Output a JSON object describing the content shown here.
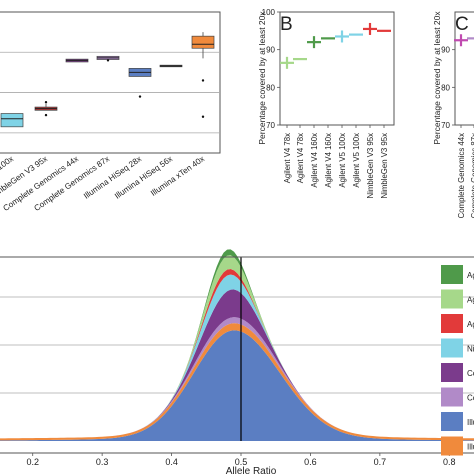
{
  "chart_data": [
    {
      "type": "box",
      "panel": "A",
      "title": "",
      "xlabel": "",
      "ylabel": "",
      "categories": [
        "...100x",
        "NimbleGen V3 95x",
        "Complete Genomics 44x",
        "Complete Genomics 87x",
        "Illumina HiSeq 28x",
        "Illumina HiSeq 56x",
        "Illumina xTen 40x"
      ],
      "boxes": [
        {
          "q1": 71.5,
          "median": 73.5,
          "q3": 74.8,
          "whisker_low": 71.5,
          "whisker_high": 74.8,
          "outliers": [],
          "color": "#7fd3e6"
        },
        {
          "q1": 75.6,
          "median": 76.0,
          "q3": 76.4,
          "whisker_low": 75.6,
          "whisker_high": 77.2,
          "outliers": [
            77.6,
            74.4
          ],
          "color": "#b23a3a"
        },
        {
          "q1": 87.6,
          "median": 88.0,
          "q3": 88.3,
          "whisker_low": 87.6,
          "whisker_high": 88.3,
          "outliers": [],
          "color": "#7b3b8c"
        },
        {
          "q1": 88.2,
          "median": 88.6,
          "q3": 89.0,
          "whisker_low": 88.2,
          "whisker_high": 89.0,
          "outliers": [
            88.0
          ],
          "color": "#b18ac8"
        },
        {
          "q1": 84.0,
          "median": 85.0,
          "q3": 86.0,
          "whisker_low": 84.0,
          "whisker_high": 86.0,
          "outliers": [
            79.0
          ],
          "color": "#5b7ec2"
        },
        {
          "q1": 86.4,
          "median": 86.6,
          "q3": 86.8,
          "whisker_low": 86.4,
          "whisker_high": 86.8,
          "outliers": [],
          "color": "#5b7ec2"
        },
        {
          "q1": 91.0,
          "median": 92.0,
          "q3": 94.0,
          "whisker_low": 88.5,
          "whisker_high": 95.0,
          "outliers": [
            83.0,
            74.0
          ],
          "color": "#f08a3c"
        }
      ],
      "ylim": [
        65,
        100
      ],
      "gridlines": [
        70,
        80,
        90
      ],
      "grid": true
    },
    {
      "type": "scatter",
      "panel": "B",
      "title": "",
      "xlabel": "",
      "ylabel": "Percentage covered by at least 20x",
      "categories": [
        "Agilent V4 78x",
        "Agilent V4 78x",
        "Agilent V4 160x",
        "Agilent V4 160x",
        "Agilent V5 100x",
        "Agilent V5 100x",
        "NimbleGen V3 95x",
        "NimbleGen V3 95x"
      ],
      "values": [
        86.5,
        87.5,
        92.0,
        93.0,
        93.5,
        94.0,
        95.5,
        95.0
      ],
      "colors": [
        "#a6d88a",
        "#a6d88a",
        "#4f9a4a",
        "#4f9a4a",
        "#7fd3e6",
        "#7fd3e6",
        "#e23a3a",
        "#e23a3a"
      ],
      "ylim": [
        70,
        100
      ],
      "yticks": [
        70,
        80,
        90,
        100
      ],
      "grid": false
    },
    {
      "type": "scatter",
      "panel": "C",
      "title": "",
      "xlabel": "",
      "ylabel": "Percentage covered by at least 20x",
      "categories": [
        "Complete Genomics 44x",
        "Complete Genomics 87x"
      ],
      "values": [
        92.5,
        93.0
      ],
      "colors": [
        "#c04ab0",
        "#b18ac8"
      ],
      "ylim": [
        70,
        100
      ],
      "yticks": [
        70,
        80,
        90
      ],
      "grid": false
    },
    {
      "type": "area",
      "panel": "D",
      "title": "",
      "xlabel": "Allele Ratio",
      "ylabel": "",
      "xlim": [
        0.15,
        0.85
      ],
      "xticks": [
        0.2,
        0.3,
        0.4,
        0.5,
        0.6,
        0.7,
        0.8
      ],
      "vline": 0.5,
      "grid": true,
      "stacked": true,
      "series": [
        {
          "name": "Illu...",
          "color": "#5b7ec2"
        },
        {
          "name": "Illu...",
          "color": "#f08a3c"
        },
        {
          "name": "Co...",
          "color": "#b18ac8"
        },
        {
          "name": "Co...",
          "color": "#7b3b8c"
        },
        {
          "name": "Nim...",
          "color": "#7fd3e6"
        },
        {
          "name": "Ag...",
          "color": "#e23a3a"
        },
        {
          "name": "Ag...",
          "color": "#a6d88a"
        },
        {
          "name": "Ag...",
          "color": "#4f9a4a"
        }
      ],
      "legend_labels": [
        "Ag",
        "Ag",
        "Ag",
        "Nim",
        "Co",
        "Co",
        "Illu",
        "Illu"
      ],
      "legend_colors": [
        "#4f9a4a",
        "#a6d88a",
        "#e23a3a",
        "#7fd3e6",
        "#7b3b8c",
        "#b18ac8",
        "#5b7ec2",
        "#f08a3c"
      ],
      "legend": "right"
    }
  ],
  "panel_labels": {
    "b": "B",
    "c": "C"
  }
}
